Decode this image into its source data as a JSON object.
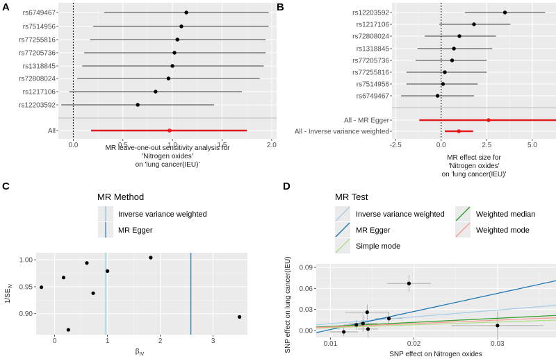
{
  "chart_data": [
    {
      "panel": "A",
      "type": "forest",
      "xlabel_lines": [
        "MR leave-one-out sensitivity analysis for",
        "'Nitrogen oxides'",
        "on 'lung cancer(IEU)'"
      ],
      "xlim": [
        -0.15,
        2.05
      ],
      "xticks": [
        0.0,
        0.5,
        1.0,
        1.5,
        2.0
      ],
      "xtick_labels": [
        "0.0",
        "0.5",
        "1.0",
        "1.5",
        "2.0"
      ],
      "rows": [
        {
          "label": "rs6749467",
          "est": 1.14,
          "lo": 0.31,
          "hi": 1.97
        },
        {
          "label": "rs7514956",
          "est": 1.09,
          "lo": 0.2,
          "hi": 1.97
        },
        {
          "label": "rs77255816",
          "est": 1.05,
          "lo": 0.17,
          "hi": 1.94
        },
        {
          "label": "rs77205736",
          "est": 1.02,
          "lo": 0.11,
          "hi": 1.94
        },
        {
          "label": "rs1318845",
          "est": 1.0,
          "lo": 0.09,
          "hi": 1.92
        },
        {
          "label": "rs72808024",
          "est": 0.96,
          "lo": 0.04,
          "hi": 1.88
        },
        {
          "label": "rs1217106",
          "est": 0.83,
          "lo": -0.04,
          "hi": 1.7
        },
        {
          "label": "rs12203592",
          "est": 0.65,
          "lo": -0.12,
          "hi": 1.42
        }
      ],
      "summary": [
        {
          "label": "All",
          "est": 0.97,
          "lo": 0.18,
          "hi": 1.75
        }
      ]
    },
    {
      "panel": "B",
      "type": "forest",
      "xlabel_lines": [
        "MR effect size for",
        "'Nitrogen oxides'",
        "on 'lung cancer(IEU)'"
      ],
      "xlim": [
        -2.7,
        6.3
      ],
      "xticks": [
        -2.5,
        0.0,
        2.5,
        5.0
      ],
      "xtick_labels": [
        "-2.5",
        "0.0",
        "2.5",
        "5.0"
      ],
      "rows": [
        {
          "label": "rs12203592",
          "est": 3.5,
          "lo": 1.3,
          "hi": 5.7
        },
        {
          "label": "rs1217106",
          "est": 1.8,
          "lo": -0.1,
          "hi": 3.8
        },
        {
          "label": "rs72808024",
          "est": 1.0,
          "lo": -0.9,
          "hi": 3.0
        },
        {
          "label": "rs1318845",
          "est": 0.7,
          "lo": -1.3,
          "hi": 2.8
        },
        {
          "label": "rs77205736",
          "est": 0.6,
          "lo": -1.4,
          "hi": 2.5
        },
        {
          "label": "rs77255816",
          "est": 0.2,
          "lo": -1.9,
          "hi": 2.5
        },
        {
          "label": "rs7514956",
          "est": 0.1,
          "lo": -1.9,
          "hi": 2.0
        },
        {
          "label": "rs6749467",
          "est": -0.2,
          "lo": -2.2,
          "hi": 1.8
        }
      ],
      "summary": [
        {
          "label": "All - MR Egger",
          "est": 2.6,
          "lo": -1.2,
          "hi": 6.3
        },
        {
          "label": "All - Inverse variance weighted",
          "est": 0.97,
          "lo": 0.2,
          "hi": 1.75
        }
      ]
    },
    {
      "panel": "C",
      "type": "funnel",
      "legend_title": "MR Method",
      "legend": [
        {
          "name": "Inverse variance weighted",
          "color": "#7fc5d6",
          "xint": 0.97
        },
        {
          "name": "MR Egger",
          "color": "#1f78b4",
          "xint": 2.58
        }
      ],
      "xlabel_main": "β",
      "xlabel_sub": "IV",
      "ylabel_main": "1/SE",
      "ylabel_sub": "IV",
      "xlim": [
        -0.35,
        3.65
      ],
      "ylim": [
        0.861,
        1.013
      ],
      "xticks": [
        0,
        1,
        2,
        3
      ],
      "xtick_labels": [
        "0",
        "1",
        "2",
        "3"
      ],
      "yticks": [
        0.9,
        0.95,
        1.0
      ],
      "ytick_labels": [
        "0.90",
        "0.95",
        "1.00"
      ],
      "points": [
        {
          "x": -0.25,
          "y": 0.949
        },
        {
          "x": 0.17,
          "y": 0.967
        },
        {
          "x": 0.26,
          "y": 0.87
        },
        {
          "x": 0.61,
          "y": 0.994
        },
        {
          "x": 0.73,
          "y": 0.938
        },
        {
          "x": 1.0,
          "y": 0.979
        },
        {
          "x": 1.82,
          "y": 1.004
        },
        {
          "x": 3.5,
          "y": 0.894
        }
      ]
    },
    {
      "panel": "D",
      "type": "scatter",
      "legend_title": "MR Test",
      "legend": [
        {
          "name": "Inverse variance weighted",
          "color": "#a6cee3",
          "slope": 0.97,
          "intercept": 0
        },
        {
          "name": "MR Egger",
          "color": "#1f78b4",
          "slope": 2.58,
          "intercept": -0.0245
        },
        {
          "name": "Simple mode",
          "color": "#b2df8a",
          "slope": 0.4,
          "intercept": 0
        },
        {
          "name": "Weighted median",
          "color": "#33a02c",
          "slope": 0.58,
          "intercept": 0
        },
        {
          "name": "Weighted mode",
          "color": "#fb9a99",
          "slope": 0.49,
          "intercept": 0
        }
      ],
      "xlabel": "SNP effect on Nitrogen oxides",
      "ylabel": "SNP effect on lung cancer(IEU)",
      "xlim": [
        0.0083,
        0.037
      ],
      "ylim": [
        -0.01,
        0.095
      ],
      "xticks": [
        0.01,
        0.02,
        0.03
      ],
      "xtick_labels": [
        "0.01",
        "0.02",
        "0.03"
      ],
      "yticks": [
        0.0,
        0.03,
        0.06,
        0.09
      ],
      "ytick_labels": [
        "0.00",
        "0.03",
        "0.06",
        "0.09"
      ],
      "points": [
        {
          "x": 0.0116,
          "y": -0.002,
          "xse": 0.0017,
          "yse": 0.006
        },
        {
          "x": 0.0131,
          "y": 0.008,
          "xse": 0.0015,
          "yse": 0.007
        },
        {
          "x": 0.0139,
          "y": 0.01,
          "xse": 0.0017,
          "yse": 0.012
        },
        {
          "x": 0.0144,
          "y": 0.026,
          "xse": 0.0026,
          "yse": 0.011
        },
        {
          "x": 0.0145,
          "y": 0.002,
          "xse": 0.0012,
          "yse": 0.012
        },
        {
          "x": 0.017,
          "y": 0.017,
          "xse": 0.0016,
          "yse": 0.01
        },
        {
          "x": 0.0194,
          "y": 0.067,
          "xse": 0.0026,
          "yse": 0.012
        },
        {
          "x": 0.03,
          "y": 0.007,
          "xse": 0.0055,
          "yse": 0.02
        }
      ]
    }
  ]
}
